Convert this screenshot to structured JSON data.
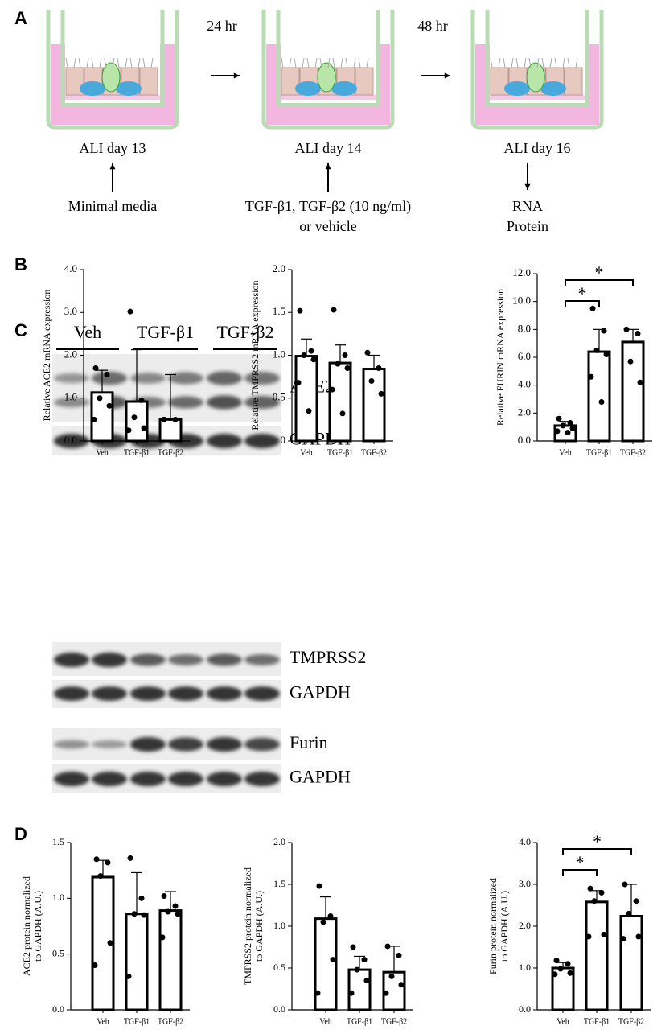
{
  "panel_labels": [
    "A",
    "B",
    "C",
    "D"
  ],
  "schematic": {
    "steps": [
      "ALI day 13",
      "ALI day 14",
      "ALI day 16"
    ],
    "intervals": [
      "24 hr",
      "48 hr"
    ],
    "treatments": [
      [
        "Minimal media"
      ],
      [
        "TGF-β1,  TGF-β2 (10 ng/ml)",
        "or vehicle"
      ],
      [
        "RNA",
        "Protein"
      ]
    ]
  },
  "blot": {
    "lanes": [
      "Veh",
      "TGF-β1",
      "TGF-β2"
    ],
    "proteins": [
      "ACE2",
      "GAPDH",
      "TMPRSS2",
      "GAPDH",
      "Furin",
      "GAPDH"
    ]
  },
  "chart_data": [
    {
      "type": "bar",
      "ylabel": "Relative ACE2 mRNA expression",
      "categories": [
        "Veh",
        "TGF-β1",
        "TGF-β2"
      ],
      "values": [
        1.13,
        0.92,
        0.5
      ],
      "errors": [
        0.52,
        1.21,
        1.05
      ],
      "points": [
        [
          1.7,
          1.55,
          1.0,
          0.82,
          0.5
        ],
        [
          3.02,
          0.95,
          0.55,
          0.3,
          0.25
        ],
        [
          0.5,
          0.5
        ]
      ],
      "ylim": [
        0,
        4
      ],
      "yticks": [
        {
          "value": 0,
          "label": "0.0"
        },
        {
          "value": 1,
          "label": "1.0"
        },
        {
          "value": 2,
          "label": "2.0"
        },
        {
          "value": 3,
          "label": "3.0"
        },
        {
          "value": 4,
          "label": "4.0"
        }
      ],
      "color": "#000000"
    },
    {
      "type": "bar",
      "ylabel": "Relative TMPRSS2 mRNA expression",
      "categories": [
        "Veh",
        "TGF-β1",
        "TGF-β2"
      ],
      "values": [
        0.99,
        0.91,
        0.84
      ],
      "errors": [
        0.2,
        0.21,
        0.16
      ],
      "points": [
        [
          1.52,
          1.05,
          1.0,
          0.95,
          0.68,
          0.35
        ],
        [
          1.53,
          1.0,
          0.9,
          0.85,
          0.6,
          0.32
        ],
        [
          1.03,
          0.85,
          0.7,
          0.55
        ]
      ],
      "ylim": [
        0,
        2
      ],
      "yticks": [
        0,
        0.5,
        {
          "value": 1,
          "label": "1.0"
        },
        1.5,
        {
          "value": 2,
          "label": "2.0"
        }
      ],
      "color": "#000000"
    },
    {
      "type": "bar",
      "ylabel": "Relative FURIN mRNA expression",
      "categories": [
        "Veh",
        "TGF-β1",
        "TGF-β2"
      ],
      "values": [
        1.1,
        6.4,
        7.1
      ],
      "errors": [
        0.3,
        1.6,
        0.9
      ],
      "points": [
        [
          1.6,
          1.3,
          1.1,
          0.9,
          0.7,
          0.6
        ],
        [
          9.5,
          7.9,
          6.5,
          6.2,
          4.6,
          2.8
        ],
        [
          8.0,
          7.7,
          5.7,
          4.2
        ]
      ],
      "ylim": [
        0,
        12
      ],
      "yticks": [
        {
          "value": 0,
          "label": "0.0"
        },
        {
          "value": 2,
          "label": "2.0"
        },
        {
          "value": 4,
          "label": "4.0"
        },
        {
          "value": 6,
          "label": "6.0"
        },
        {
          "value": 8,
          "label": "8.0"
        },
        {
          "value": 10,
          "label": "10.0"
        },
        {
          "value": 12,
          "label": "12.0"
        }
      ],
      "annotations": [
        "*",
        "*"
      ],
      "color": "#000000"
    },
    {
      "type": "bar",
      "ylabel": "ACE2 protein normalized to GAPDH (A.U.)",
      "categories": [
        "Veh",
        "TGF-β1",
        "TGF-β2"
      ],
      "values": [
        1.19,
        0.86,
        0.89
      ],
      "errors": [
        0.15,
        0.37,
        0.17
      ],
      "points": [
        [
          1.35,
          1.32,
          1.2,
          0.6,
          0.4
        ],
        [
          1.36,
          1.0,
          0.86,
          0.85,
          0.3
        ],
        [
          1.02,
          0.93,
          0.88,
          0.86,
          0.65
        ]
      ],
      "ylim": [
        0,
        1.5
      ],
      "yticks": [
        {
          "value": 0,
          "label": "0.0"
        },
        0.5,
        {
          "value": 1,
          "label": "1.0"
        },
        1.5
      ],
      "color": "#000000"
    },
    {
      "type": "bar",
      "ylabel": "TMPRSS2 protein normalized to GAPDH (A.U.)",
      "categories": [
        "Veh",
        "TGF-β1",
        "TGF-β2"
      ],
      "values": [
        1.09,
        0.48,
        0.45
      ],
      "errors": [
        0.26,
        0.16,
        0.31
      ],
      "points": [
        [
          1.48,
          1.12,
          1.05,
          0.6,
          0.2
        ],
        [
          0.75,
          0.6,
          0.48,
          0.35,
          0.2
        ],
        [
          0.76,
          0.65,
          0.4,
          0.3,
          0.2
        ]
      ],
      "ylim": [
        0,
        2
      ],
      "yticks": [
        {
          "value": 0,
          "label": "0.0"
        },
        0.5,
        {
          "value": 1,
          "label": "1.0"
        },
        1.5,
        {
          "value": 2,
          "label": "2.0"
        }
      ],
      "color": "#000000"
    },
    {
      "type": "bar",
      "ylabel": "Furin protein normalized to GAPDH (A.U.)",
      "categories": [
        "Veh",
        "TGF-β1",
        "TGF-β2"
      ],
      "values": [
        1.0,
        2.58,
        2.24
      ],
      "errors": [
        0.13,
        0.27,
        0.76
      ],
      "points": [
        [
          1.18,
          1.1,
          0.98,
          0.88,
          0.85
        ],
        [
          2.9,
          2.8,
          2.6,
          1.8,
          1.75
        ],
        [
          3.0,
          2.6,
          2.3,
          1.75,
          1.7
        ]
      ],
      "ylim": [
        0,
        4
      ],
      "yticks": [
        {
          "value": 0,
          "label": "0.0"
        },
        {
          "value": 1,
          "label": "1.0"
        },
        {
          "value": 2,
          "label": "2.0"
        },
        {
          "value": 3,
          "label": "3.0"
        },
        {
          "value": 4,
          "label": "4.0"
        }
      ],
      "annotations": [
        "*",
        "*"
      ],
      "color": "#000000"
    }
  ]
}
